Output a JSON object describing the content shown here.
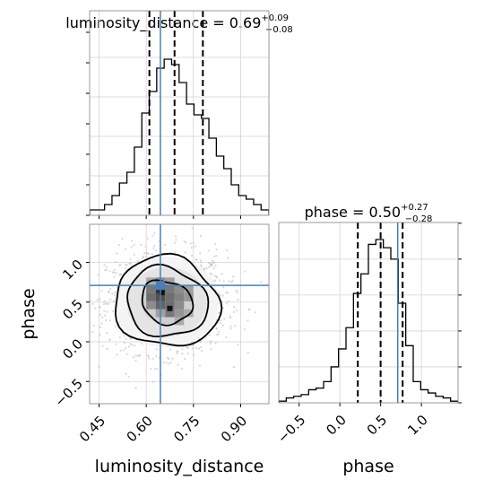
{
  "chart_data": [
    {
      "type": "histogram",
      "panel": "top-left",
      "parameter": "luminosity_distance",
      "title": {
        "label": "luminosity_distance = 0.69",
        "sup": "+0.09",
        "sub": "−0.08"
      },
      "xlim": [
        0.42,
        0.99
      ],
      "x_ticks": [
        0.45,
        0.6,
        0.75,
        0.9
      ],
      "grid": true,
      "bin_edges": [
        0.42,
        0.4437,
        0.4674,
        0.4911,
        0.5148,
        0.5385,
        0.5622,
        0.5859,
        0.6096,
        0.6333,
        0.657,
        0.6807,
        0.7044,
        0.7281,
        0.7518,
        0.7755,
        0.7992,
        0.8229,
        0.8466,
        0.8703,
        0.894,
        0.9177,
        0.9414,
        0.9651,
        0.99
      ],
      "counts": [
        0.03,
        0.03,
        0.06,
        0.11,
        0.18,
        0.24,
        0.38,
        0.57,
        0.69,
        0.82,
        0.87,
        0.84,
        0.74,
        0.62,
        0.56,
        0.54,
        0.43,
        0.33,
        0.26,
        0.17,
        0.11,
        0.09,
        0.06,
        0.03
      ],
      "quantile_lines": [
        0.61,
        0.69,
        0.78
      ],
      "truth": 0.645
    },
    {
      "type": "histogram",
      "panel": "bottom-right",
      "parameter": "phase",
      "title": {
        "label": "phase = 0.50",
        "sup": "+0.27",
        "sub": "−0.28"
      },
      "xlabel": "phase",
      "xlim": [
        -0.75,
        1.45
      ],
      "x_ticks": [
        -0.5,
        0.0,
        0.5,
        1.0
      ],
      "x_tick_labels": [
        "−0.5",
        "0.0",
        "0.5",
        "1.0"
      ],
      "grid": true,
      "bin_edges": [
        -0.75,
        -0.6583,
        -0.5667,
        -0.475,
        -0.3833,
        -0.2917,
        -0.2,
        -0.1083,
        -0.0167,
        0.075,
        0.1667,
        0.2583,
        0.35,
        0.4417,
        0.5333,
        0.625,
        0.7167,
        0.8083,
        0.9,
        0.9917,
        1.0833,
        1.175,
        1.2667,
        1.3583,
        1.45
      ],
      "counts": [
        0.01,
        0.03,
        0.04,
        0.05,
        0.08,
        0.09,
        0.13,
        0.22,
        0.33,
        0.46,
        0.67,
        0.79,
        0.97,
        1.0,
        0.95,
        0.88,
        0.61,
        0.35,
        0.13,
        0.08,
        0.06,
        0.04,
        0.03,
        0.01
      ],
      "quantile_lines": [
        0.22,
        0.5,
        0.77
      ],
      "truth": 0.71
    },
    {
      "type": "scatter",
      "panel": "bottom-left",
      "xlabel": "luminosity_distance",
      "ylabel": "phase",
      "xlim": [
        0.42,
        0.99
      ],
      "ylim": [
        -0.78,
        1.48
      ],
      "x_ticks": [
        0.45,
        0.6,
        0.75,
        0.9
      ],
      "y_ticks": [
        -0.5,
        0.0,
        0.5,
        1.0
      ],
      "y_tick_labels": [
        "−0.5",
        "0.0",
        "0.5",
        "1.0"
      ],
      "center": [
        0.665,
        0.5
      ],
      "spread": [
        0.095,
        0.32
      ],
      "contours": [
        {
          "level": "outer",
          "rx": 0.166,
          "ry": 0.57
        },
        {
          "level": "middle",
          "rx": 0.128,
          "ry": 0.44
        },
        {
          "level": "inner",
          "rx": 0.08,
          "ry": 0.275
        }
      ],
      "density_cells": [
        {
          "x": 0.645,
          "y": 0.76,
          "v": 0.45
        },
        {
          "x": 0.675,
          "y": 0.76,
          "v": 0.35
        },
        {
          "x": 0.615,
          "y": 0.76,
          "v": 0.3
        },
        {
          "x": 0.705,
          "y": 0.66,
          "v": 0.45
        },
        {
          "x": 0.675,
          "y": 0.66,
          "v": 0.55
        },
        {
          "x": 0.645,
          "y": 0.66,
          "v": 0.9
        },
        {
          "x": 0.615,
          "y": 0.66,
          "v": 0.55
        },
        {
          "x": 0.735,
          "y": 0.66,
          "v": 0.35
        },
        {
          "x": 0.615,
          "y": 0.56,
          "v": 0.6
        },
        {
          "x": 0.645,
          "y": 0.56,
          "v": 0.75
        },
        {
          "x": 0.675,
          "y": 0.56,
          "v": 0.6
        },
        {
          "x": 0.705,
          "y": 0.56,
          "v": 0.5
        },
        {
          "x": 0.735,
          "y": 0.56,
          "v": 0.4
        },
        {
          "x": 0.645,
          "y": 0.46,
          "v": 0.65
        },
        {
          "x": 0.675,
          "y": 0.46,
          "v": 0.6
        },
        {
          "x": 0.615,
          "y": 0.46,
          "v": 0.45
        },
        {
          "x": 0.705,
          "y": 0.46,
          "v": 0.45
        },
        {
          "x": 0.675,
          "y": 0.36,
          "v": 0.55
        },
        {
          "x": 0.705,
          "y": 0.36,
          "v": 0.4
        },
        {
          "x": 0.645,
          "y": 0.36,
          "v": 0.35
        },
        {
          "x": 0.735,
          "y": 0.36,
          "v": 0.3
        },
        {
          "x": 0.705,
          "y": 0.26,
          "v": 0.3
        }
      ],
      "dark_spots": [
        {
          "x": 0.65,
          "y": 0.62
        },
        {
          "x": 0.675,
          "y": 0.42
        }
      ],
      "truth": [
        0.645,
        0.71
      ]
    }
  ],
  "colors": {
    "truth": "#4a7fb5",
    "line": "#000000",
    "grid": "#d3d3d3",
    "scatter": "#b8b8b8"
  }
}
